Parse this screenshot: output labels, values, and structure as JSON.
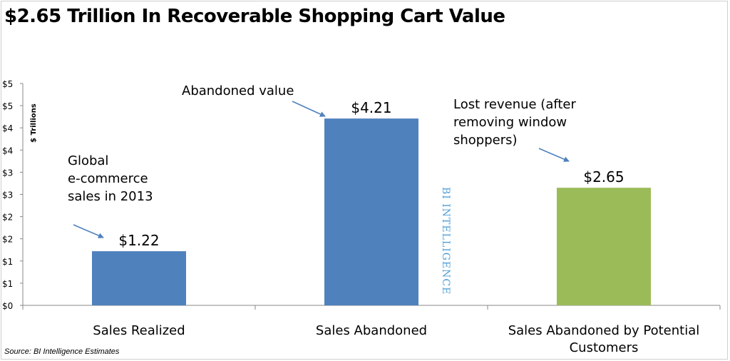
{
  "chart_data": {
    "type": "bar",
    "title": "$2.65 Trillion In Recoverable Shopping Cart Value",
    "ylabel": "$ Trillions",
    "xlabel": "",
    "categories": [
      "Sales Realized",
      "Sales Abandoned",
      "Sales Abandoned by Potential Customers"
    ],
    "category_lines": [
      [
        "Sales Realized"
      ],
      [
        "Sales Abandoned"
      ],
      [
        "Sales Abandoned by Potential",
        "Customers"
      ]
    ],
    "values": [
      1.22,
      4.21,
      2.65
    ],
    "data_labels": [
      "$1.22",
      "$4.21",
      "$2.65"
    ],
    "bar_colors": [
      "#4f81bd",
      "#4f81bd",
      "#9bbb59"
    ],
    "ylim": [
      0,
      5
    ],
    "ytick_values": [
      0,
      0.5,
      1,
      1.5,
      2,
      2.5,
      3,
      3.5,
      4,
      4.5,
      5
    ],
    "ytick_labels": [
      "$0",
      "$1",
      "$1",
      "$2",
      "$2",
      "$3",
      "$3",
      "$4",
      "$4",
      "$5",
      "$5"
    ],
    "grid": false,
    "annotations": [
      [
        "Global",
        "e-commerce",
        "sales in 2013"
      ],
      [
        "Abandoned value"
      ],
      [
        "Lost revenue (after",
        "removing window",
        "shoppers)"
      ]
    ],
    "watermark": "BI INTELLIGENCE",
    "source": "Source: BI Intelligence Estimates"
  },
  "colors": {
    "bar_blue": "#4f81bd",
    "bar_green": "#9bbb59",
    "arrow": "#4f81bd",
    "watermark": "#4f9fd8"
  }
}
